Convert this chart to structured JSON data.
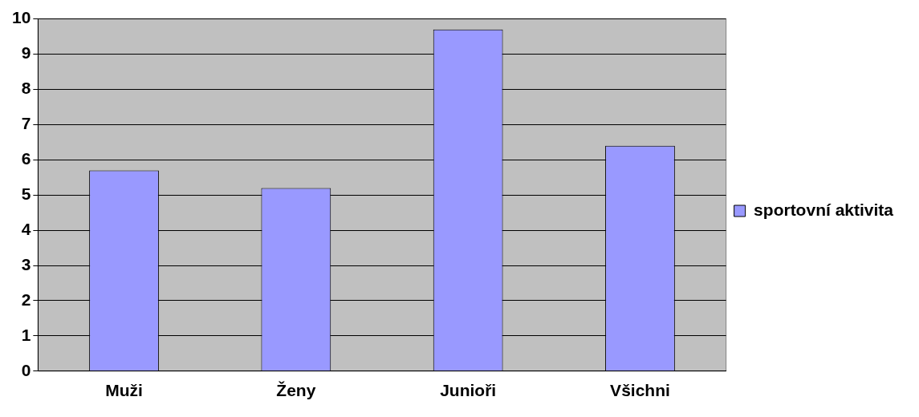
{
  "chart_data": {
    "type": "bar",
    "categories": [
      "Muži",
      "Ženy",
      "Junioři",
      "Všichni"
    ],
    "series": [
      {
        "name": "sportovní aktivita",
        "color": "#9999ff",
        "values": [
          5.7,
          5.2,
          9.7,
          6.4
        ]
      }
    ],
    "ylim": [
      0,
      10
    ],
    "yticks": [
      0,
      1,
      2,
      3,
      4,
      5,
      6,
      7,
      8,
      9,
      10
    ],
    "grid": "y",
    "legend": "right"
  }
}
